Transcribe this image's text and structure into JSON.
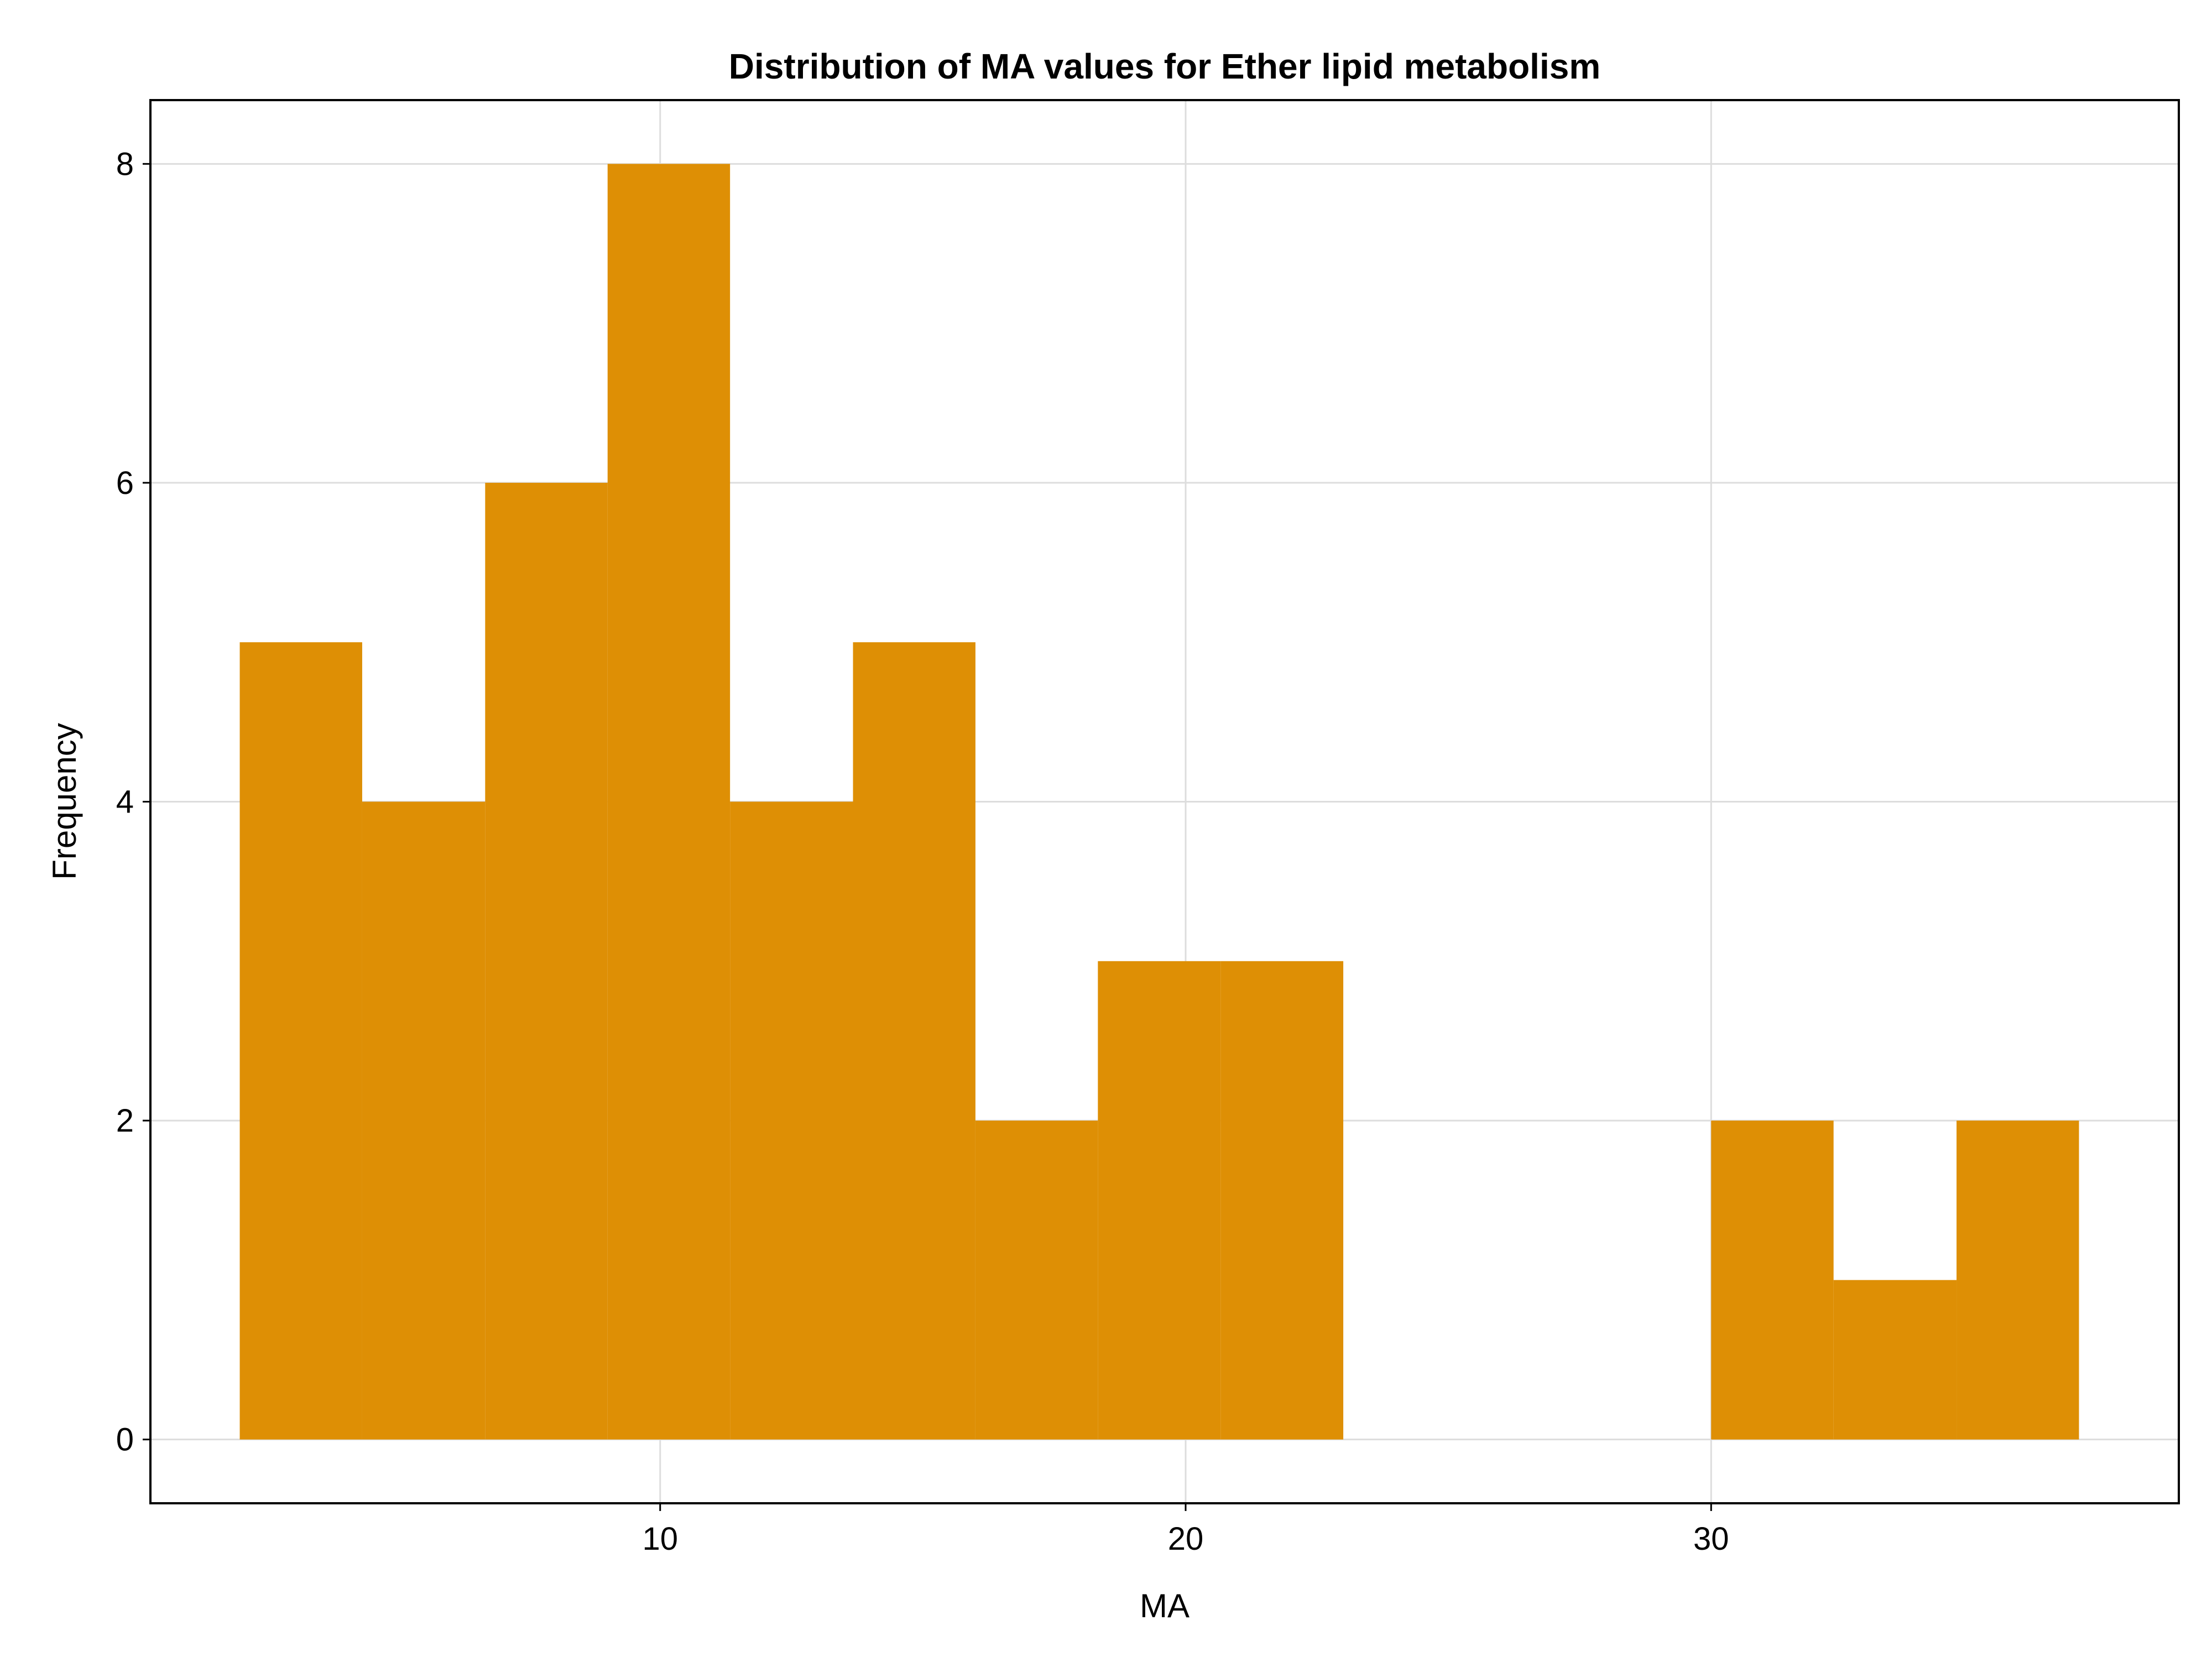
{
  "chart_data": {
    "type": "bar",
    "title": "Distribution of MA values for Ether lipid metabolism",
    "xlabel": "MA",
    "ylabel": "Frequency",
    "xlim": [
      0.3,
      38.9
    ],
    "ylim": [
      -0.4,
      8.4
    ],
    "x_ticks": [
      10,
      20,
      30
    ],
    "x_tick_labels": [
      "10",
      "20",
      "30"
    ],
    "y_ticks": [
      0,
      2,
      4,
      6,
      8
    ],
    "y_tick_labels": [
      "0",
      "2",
      "4",
      "6",
      "8"
    ],
    "grid": true,
    "bar_color": "#DE8F05",
    "bins": [
      {
        "x0": 2.0,
        "x1": 4.33,
        "value": 5
      },
      {
        "x0": 4.33,
        "x1": 6.67,
        "value": 4
      },
      {
        "x0": 6.67,
        "x1": 9.0,
        "value": 6
      },
      {
        "x0": 9.0,
        "x1": 11.33,
        "value": 8
      },
      {
        "x0": 11.33,
        "x1": 13.67,
        "value": 4
      },
      {
        "x0": 13.67,
        "x1": 16.0,
        "value": 5
      },
      {
        "x0": 16.0,
        "x1": 18.33,
        "value": 2
      },
      {
        "x0": 18.33,
        "x1": 20.67,
        "value": 3
      },
      {
        "x0": 20.67,
        "x1": 23.0,
        "value": 3
      },
      {
        "x0": 23.0,
        "x1": 25.33,
        "value": 0
      },
      {
        "x0": 25.33,
        "x1": 27.67,
        "value": 0
      },
      {
        "x0": 27.67,
        "x1": 30.0,
        "value": 0
      },
      {
        "x0": 30.0,
        "x1": 32.33,
        "value": 2
      },
      {
        "x0": 32.33,
        "x1": 34.67,
        "value": 1
      },
      {
        "x0": 34.67,
        "x1": 37.0,
        "value": 2
      }
    ]
  }
}
